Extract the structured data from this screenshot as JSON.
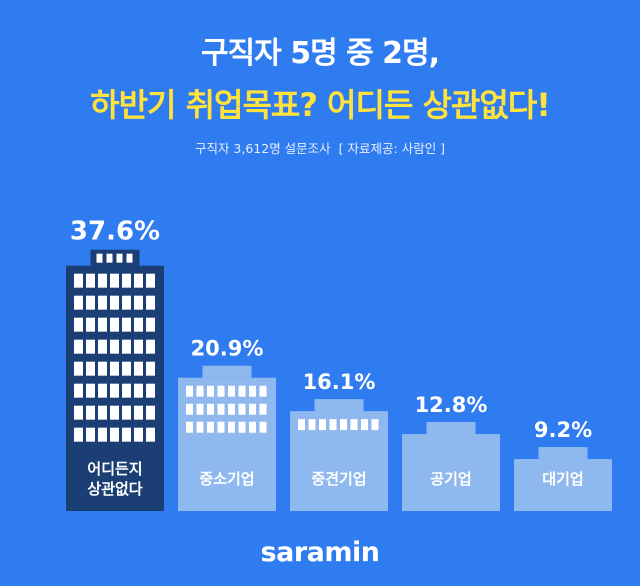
{
  "header": {
    "title_line1": "구직자 5명 중 2명,",
    "title_line2": "하반기 취업목표? 어디든 상관없다!",
    "survey_note": "구직자 3,612명 설문조사",
    "source_note": "[ 자료제공: 사람인 ]"
  },
  "brand": {
    "logo_text": "saramin"
  },
  "colors": {
    "background": "#2f7bf0",
    "highlight_bar": "#1b3f75",
    "bar": "#8fb9ee",
    "window_dark": "#ffffff",
    "window_light": "#ffffff",
    "title_accent": "#ffe23c"
  },
  "chart_data": {
    "type": "bar",
    "title": "하반기 취업목표",
    "categories": [
      "어디든지 상관없다",
      "중소기업",
      "중견기업",
      "공기업",
      "대기업"
    ],
    "category_lines": [
      [
        "어디든지",
        "상관없다"
      ],
      [
        "중소기업"
      ],
      [
        "중견기업"
      ],
      [
        "공기업"
      ],
      [
        "대기업"
      ]
    ],
    "values": [
      37.6,
      20.9,
      16.1,
      12.8,
      9.2
    ],
    "value_labels": [
      "37.6%",
      "20.9%",
      "16.1%",
      "12.8%",
      "9.2%"
    ],
    "unit": "%",
    "highlight_index": 0,
    "ylim": [
      0,
      40
    ],
    "grid": false,
    "legend": "none"
  }
}
